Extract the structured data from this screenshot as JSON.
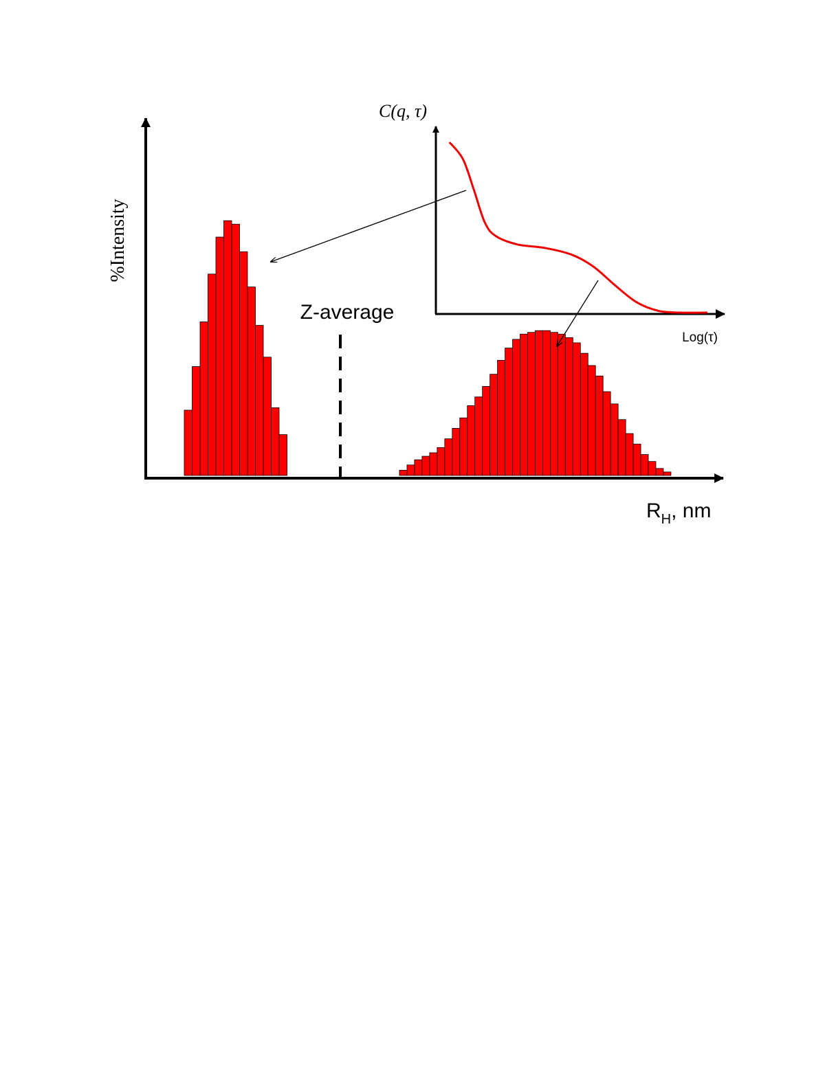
{
  "chart_data": [
    {
      "type": "bar",
      "title": "",
      "ylabel": "%Intensity",
      "xlabel_main": "R",
      "xlabel_sub": "H",
      "xlabel_suffix": ", nm",
      "annotation": "Z-average",
      "bar_color": "#ff0000",
      "y_max": 100,
      "series": [
        {
          "values": [
            18.7,
            31.2,
            44,
            57.7,
            68.3,
            73,
            72,
            64.1,
            54,
            43,
            33.9,
            19.4,
            11.7
          ]
        },
        {
          "values": [
            1.5,
            3,
            4.5,
            5.5,
            6.5,
            8,
            10.5,
            13.5,
            16.5,
            20,
            22.5,
            25.5,
            29,
            33,
            36.5,
            39,
            40.5,
            41,
            41.5,
            41.5,
            41,
            40.5,
            39.5,
            38,
            35,
            31.5,
            28.5,
            24,
            20.5,
            16,
            12,
            9,
            6,
            4,
            2,
            1
          ]
        }
      ]
    },
    {
      "type": "line",
      "ylabel": "C(q, τ)",
      "xlabel": "Log(τ)",
      "line_color": "#ee0000",
      "x": [
        0.05,
        0.1,
        0.14,
        0.18,
        0.22,
        0.3,
        0.4,
        0.5,
        0.58,
        0.66,
        0.74,
        0.82,
        0.9,
        1.0
      ],
      "y": [
        1.0,
        0.9,
        0.72,
        0.53,
        0.45,
        0.4,
        0.38,
        0.34,
        0.27,
        0.16,
        0.06,
        0.01,
        0.0,
        0.0
      ]
    }
  ]
}
